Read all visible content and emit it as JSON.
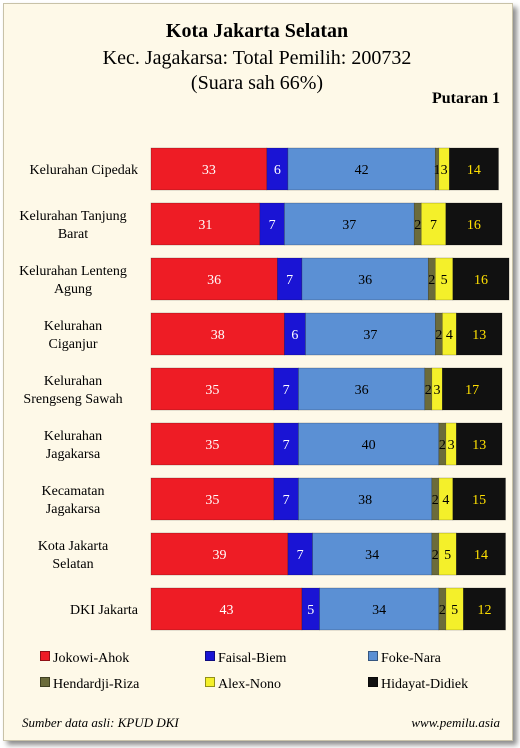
{
  "header": {
    "title": "Kota Jakarta Selatan",
    "subtitle": "Kec. Jagakarsa:  Total Pemilih: 200732",
    "subtitle2": "(Suara sah 66%)",
    "round": "Putaran 1"
  },
  "chart_data": {
    "type": "bar",
    "orientation": "horizontal",
    "stacked": true,
    "categories": [
      [
        "Kelurahan Cipedak"
      ],
      [
        "Kelurahan Tanjung",
        "Barat"
      ],
      [
        "Kelurahan Lenteng",
        "Agung"
      ],
      [
        "Kelurahan",
        "Ciganjur"
      ],
      [
        "Kelurahan",
        "Srengseng Sawah"
      ],
      [
        "Kelurahan",
        "Jagakarsa"
      ],
      [
        "Kecamatan",
        "Jagakarsa"
      ],
      [
        "Kota Jakarta",
        "Selatan"
      ],
      [
        "DKI Jakarta"
      ]
    ],
    "series": [
      {
        "name": "Jokowi-Ahok",
        "color": "#ee1c25",
        "label_color": "#ffffff",
        "values": [
          33,
          31,
          36,
          38,
          35,
          35,
          35,
          39,
          43
        ]
      },
      {
        "name": "Faisal-Biem",
        "color": "#1a14d4",
        "label_color": "#ffffff",
        "values": [
          6,
          7,
          7,
          6,
          7,
          7,
          7,
          7,
          5
        ]
      },
      {
        "name": "Foke-Nara",
        "color": "#5b90d4",
        "label_color": "#000000",
        "values": [
          42,
          37,
          36,
          37,
          36,
          40,
          38,
          34,
          34
        ]
      },
      {
        "name": "Hendardji-Riza",
        "color": "#6b6b3a",
        "label_color": "#000000",
        "values": [
          1,
          2,
          2,
          2,
          2,
          2,
          2,
          2,
          2
        ]
      },
      {
        "name": "Alex-Nono",
        "color": "#f4f02a",
        "label_color": "#000000",
        "values": [
          3,
          7,
          5,
          4,
          3,
          3,
          4,
          5,
          5
        ]
      },
      {
        "name": "Hidayat-Didiek",
        "color": "#111111",
        "label_color": "#ffe000",
        "values": [
          14,
          16,
          16,
          13,
          17,
          13,
          15,
          14,
          12
        ]
      }
    ],
    "xlim": [
      0,
      100
    ],
    "grid": false,
    "legend_position": "bottom"
  },
  "footer": {
    "source": "Sumber data asli: KPUD DKI",
    "site": "www.pemilu.asia"
  }
}
